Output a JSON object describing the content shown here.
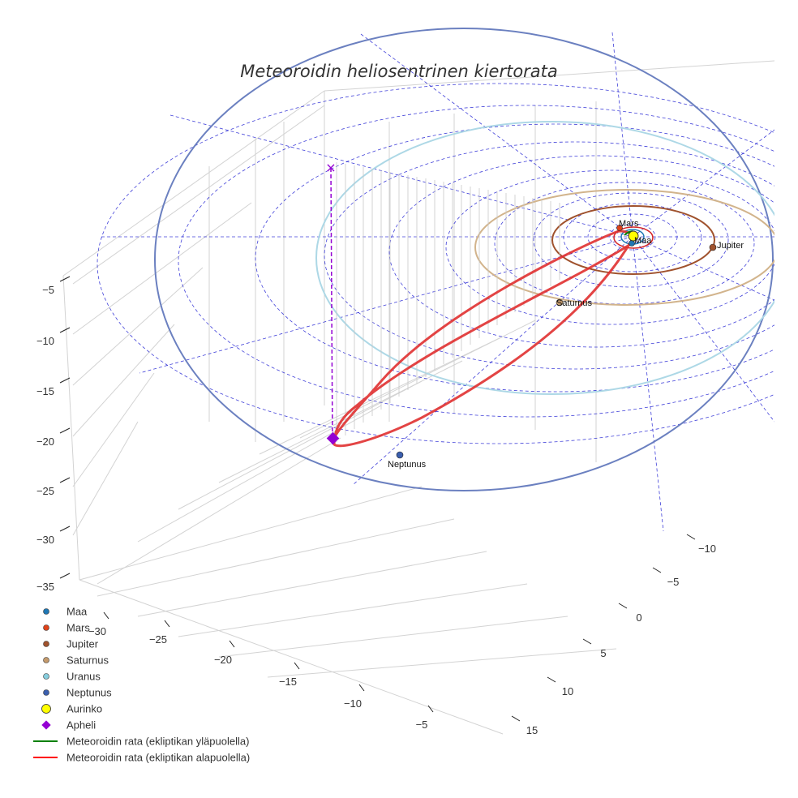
{
  "chart_data": {
    "type": "scatter",
    "title": "Meteoroidin heliosentrinen kiertorata",
    "z_axis": {
      "ticks": [
        -5,
        -10,
        -15,
        -20,
        -25,
        -30,
        -35
      ]
    },
    "x_axis": {
      "ticks": [
        -30,
        -25,
        -20,
        -15,
        -10,
        -5
      ]
    },
    "y_axis": {
      "ticks": [
        -10,
        -5,
        0,
        5,
        10,
        15
      ]
    },
    "planets": [
      {
        "name": "Maa",
        "color": "#1f77b4",
        "label": "Maa"
      },
      {
        "name": "Mars",
        "color": "#d62728",
        "label": "Mars"
      },
      {
        "name": "Jupiter",
        "color": "#a0522d",
        "label": "Jupiter"
      },
      {
        "name": "Saturnus",
        "color": "#c49a6c",
        "label": "Saturnus"
      },
      {
        "name": "Uranus",
        "color": "#87cede",
        "label": ""
      },
      {
        "name": "Neptunus",
        "color": "#3b5fae",
        "label": "Neptunus"
      }
    ],
    "legend": [
      {
        "label": "Maa",
        "marker": "dot",
        "color": "#1f77b4"
      },
      {
        "label": "Mars",
        "marker": "dot",
        "color": "#e0431a"
      },
      {
        "label": "Jupiter",
        "marker": "dot",
        "color": "#a0522d"
      },
      {
        "label": "Saturnus",
        "marker": "dot",
        "color": "#c49a6c"
      },
      {
        "label": "Uranus",
        "marker": "dot",
        "color": "#87cede"
      },
      {
        "label": "Neptunus",
        "marker": "dot",
        "color": "#3b5fae"
      },
      {
        "label": "Aurinko",
        "marker": "circle",
        "color": "#ffff00"
      },
      {
        "label": "Apheli",
        "marker": "diamond",
        "color": "#9400d3"
      },
      {
        "label": "Meteoroidin rata (ekliptikan yläpuolella)",
        "marker": "line",
        "color": "#008000"
      },
      {
        "label": "Meteoroidin rata (ekliptikan alapuolella)",
        "marker": "line",
        "color": "#ff0000"
      }
    ],
    "colors": {
      "grid": "#d3d3d3",
      "guide": "#0000cc",
      "orbit_uranus": "#add8e6",
      "orbit_neptune": "#6b80c0",
      "orbit_saturn": "#d2b48c",
      "orbit_jupiter": "#a0522d",
      "meteoroid": "#e03030",
      "aphelion": "#9400d3"
    }
  }
}
